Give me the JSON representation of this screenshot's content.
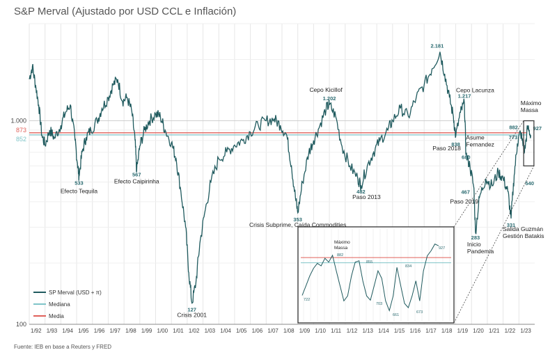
{
  "title": "S&P Merval (Ajustado por USD CCL e Inflación)",
  "source": "Fuente: IEB en base a Reuters y FRED",
  "chart_data": {
    "type": "line",
    "yscale": "log",
    "ylim": [
      100,
      3000
    ],
    "xlim": [
      1992,
      2024
    ],
    "grid": true,
    "y_ticks": [
      {
        "value": 1000,
        "label": "1.000"
      },
      {
        "value": 100,
        "label": "100"
      }
    ],
    "x_ticks": [
      "1/92",
      "1/93",
      "1/94",
      "1/95",
      "1/96",
      "1/97",
      "1/98",
      "1/99",
      "1/00",
      "1/01",
      "1/02",
      "1/03",
      "1/04",
      "1/05",
      "1/06",
      "1/07",
      "1/08",
      "1/09",
      "1/10",
      "1/11",
      "1/12",
      "1/13",
      "1/14",
      "1/15",
      "1/16",
      "1/17",
      "1/18",
      "1/19",
      "1/20",
      "1/21",
      "1/22",
      "1/23"
    ],
    "mediana": {
      "name": "Mediana",
      "value": 852,
      "label": "852",
      "color": "#7fc4c8"
    },
    "media": {
      "name": "Media",
      "value": 873,
      "label": "873",
      "color": "#e0605a"
    },
    "series": [
      {
        "name": "SP Merval (USD + π)",
        "color": "#1f5a5e",
        "points": [
          [
            1992.0,
            1600
          ],
          [
            1992.2,
            1850
          ],
          [
            1992.4,
            1500
          ],
          [
            1992.6,
            1200
          ],
          [
            1992.8,
            850
          ],
          [
            1993.0,
            760
          ],
          [
            1993.3,
            900
          ],
          [
            1993.6,
            820
          ],
          [
            1994.0,
            950
          ],
          [
            1994.3,
            1100
          ],
          [
            1994.6,
            1200
          ],
          [
            1994.9,
            800
          ],
          [
            1995.05,
            620
          ],
          [
            1995.15,
            533
          ],
          [
            1995.35,
            700
          ],
          [
            1995.6,
            830
          ],
          [
            1995.9,
            900
          ],
          [
            1996.3,
            1000
          ],
          [
            1996.6,
            1150
          ],
          [
            1997.0,
            1300
          ],
          [
            1997.3,
            1500
          ],
          [
            1997.6,
            1600
          ],
          [
            1997.9,
            1250
          ],
          [
            1998.2,
            1300
          ],
          [
            1998.5,
            1100
          ],
          [
            1998.7,
            800
          ],
          [
            1998.8,
            567
          ],
          [
            1999.0,
            750
          ],
          [
            1999.3,
            900
          ],
          [
            1999.6,
            1000
          ],
          [
            2000.0,
            1080
          ],
          [
            2000.3,
            1050
          ],
          [
            2000.6,
            900
          ],
          [
            2001.0,
            780
          ],
          [
            2001.3,
            650
          ],
          [
            2001.6,
            450
          ],
          [
            2001.9,
            300
          ],
          [
            2002.1,
            180
          ],
          [
            2002.3,
            127
          ],
          [
            2002.55,
            160
          ],
          [
            2002.8,
            250
          ],
          [
            2003.1,
            350
          ],
          [
            2003.5,
            500
          ],
          [
            2004.0,
            650
          ],
          [
            2004.5,
            700
          ],
          [
            2005.0,
            760
          ],
          [
            2005.5,
            800
          ],
          [
            2006.0,
            880
          ],
          [
            2006.5,
            950
          ],
          [
            2007.0,
            1000
          ],
          [
            2007.5,
            1020
          ],
          [
            2007.9,
            950
          ],
          [
            2008.3,
            850
          ],
          [
            2008.6,
            600
          ],
          [
            2008.85,
            420
          ],
          [
            2009.0,
            353
          ],
          [
            2009.3,
            500
          ],
          [
            2009.7,
            700
          ],
          [
            2010.0,
            800
          ],
          [
            2010.4,
            950
          ],
          [
            2010.8,
            1150
          ],
          [
            2011.0,
            1202
          ],
          [
            2011.4,
            1050
          ],
          [
            2011.8,
            750
          ],
          [
            2012.3,
            600
          ],
          [
            2012.8,
            520
          ],
          [
            2013.0,
            482
          ],
          [
            2013.4,
            600
          ],
          [
            2013.8,
            700
          ],
          [
            2014.2,
            800
          ],
          [
            2014.7,
            900
          ],
          [
            2015.0,
            1000
          ],
          [
            2015.5,
            1150
          ],
          [
            2016.0,
            1050
          ],
          [
            2016.5,
            1300
          ],
          [
            2017.0,
            1500
          ],
          [
            2017.5,
            1800
          ],
          [
            2018.0,
            2181
          ],
          [
            2018.3,
            1700
          ],
          [
            2018.6,
            1300
          ],
          [
            2018.85,
            1050
          ],
          [
            2019.0,
            838
          ],
          [
            2019.3,
            1100
          ],
          [
            2019.55,
            1217
          ],
          [
            2019.65,
            680
          ],
          [
            2019.9,
            600
          ],
          [
            2020.15,
            467
          ],
          [
            2020.25,
            283
          ],
          [
            2020.5,
            420
          ],
          [
            2020.9,
            520
          ],
          [
            2021.3,
            480
          ],
          [
            2021.7,
            560
          ],
          [
            2022.0,
            520
          ],
          [
            2022.3,
            450
          ],
          [
            2022.5,
            331
          ],
          [
            2022.7,
            540
          ],
          [
            2022.9,
            773
          ],
          [
            2023.1,
            882
          ],
          [
            2023.35,
            700
          ],
          [
            2023.55,
            927
          ],
          [
            2023.75,
            850
          ]
        ]
      }
    ],
    "annotations": [
      {
        "x": 1995.15,
        "y": 533,
        "value": "533",
        "text": "Efecto Tequila"
      },
      {
        "x": 1998.8,
        "y": 567,
        "value": "567",
        "text": "Efecto Caipirinha"
      },
      {
        "x": 2002.3,
        "y": 127,
        "value": "127",
        "text": "Crisis 2001"
      },
      {
        "x": 2009.0,
        "y": 353,
        "value": "353",
        "text": "Crisis Subprime, Caída Commodities"
      },
      {
        "x": 2011.0,
        "y": 1202,
        "value": "1.202",
        "text": "Cepo Kicillof"
      },
      {
        "x": 2013.0,
        "y": 482,
        "value": "482",
        "text": "Paso 2013"
      },
      {
        "x": 2018.0,
        "y": 2181,
        "value": "2.181",
        "text": ""
      },
      {
        "x": 2019.0,
        "y": 838,
        "value": "838",
        "text": "Paso 2018"
      },
      {
        "x": 2019.55,
        "y": 1217,
        "value": "1.217",
        "text": "Cepo Lacunza"
      },
      {
        "x": 2019.65,
        "y": 680,
        "value": "680",
        "text": "Asume Fernandez"
      },
      {
        "x": 2020.15,
        "y": 467,
        "value": "467",
        "text": "Paso 2019"
      },
      {
        "x": 2020.25,
        "y": 283,
        "value": "283",
        "text": "Inicio Pandemia"
      },
      {
        "x": 2022.5,
        "y": 331,
        "value": "331",
        "text": "Salida Guzmán Gestión Batakis"
      },
      {
        "x": 2022.9,
        "y": 773,
        "value": "773",
        "text": ""
      },
      {
        "x": 2023.1,
        "y": 882,
        "value": "882",
        "text": ""
      },
      {
        "x": 2023.55,
        "y": 927,
        "value": "927",
        "text": "Máximo Massa"
      },
      {
        "x": 2023.5,
        "y": 540,
        "value": "540",
        "text": ""
      }
    ],
    "inset": {
      "labels": [
        "Máximo Massa",
        "882",
        "855",
        "834",
        "722",
        "703",
        "661",
        "673",
        "927"
      ],
      "values": [
        722,
        760,
        800,
        830,
        850,
        840,
        870,
        855,
        882,
        820,
        760,
        700,
        720,
        800,
        855,
        860,
        780,
        720,
        703,
        760,
        820,
        790,
        700,
        661,
        720,
        834,
        760,
        690,
        673,
        720,
        780,
        700,
        820,
        880,
        900,
        927,
        920
      ]
    }
  }
}
